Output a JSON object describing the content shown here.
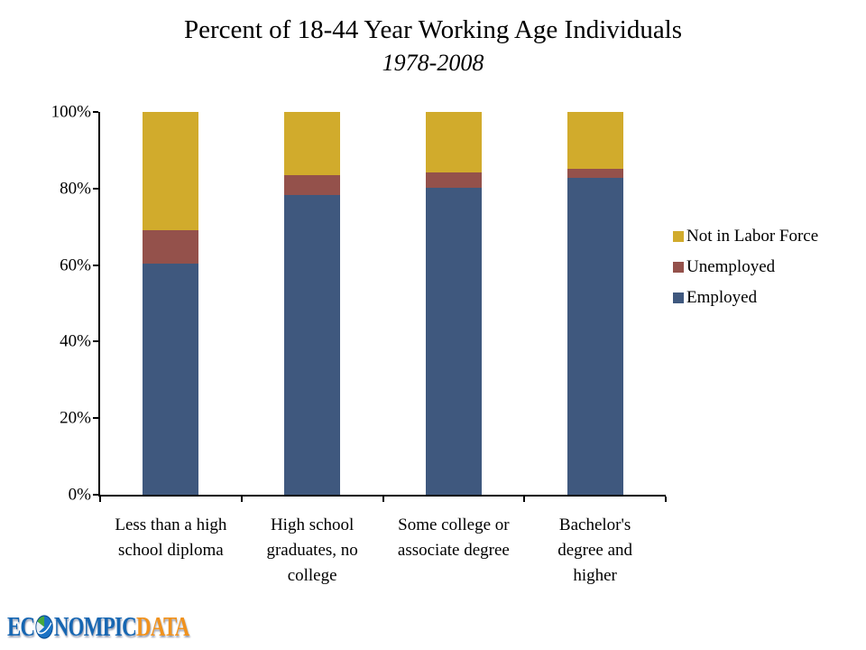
{
  "chart_data": {
    "type": "bar",
    "stacked": true,
    "title": "Percent of 18-44 Year Working Age Individuals",
    "subtitle": "1978-2008",
    "categories": [
      "Less than a high school diploma",
      "High school graduates, no college",
      "Some college or associate degree",
      "Bachelor's degree and higher"
    ],
    "category_lines": [
      [
        "Less than a high",
        "school diploma"
      ],
      [
        "High school",
        "graduates, no",
        "college"
      ],
      [
        "Some college or",
        "associate degree"
      ],
      [
        "Bachelor's",
        "degree and",
        "higher"
      ]
    ],
    "series": [
      {
        "name": "Employed",
        "color": "#3F587E",
        "values": [
          60.4,
          78.2,
          80.2,
          82.7
        ]
      },
      {
        "name": "Unemployed",
        "color": "#94514B",
        "values": [
          8.6,
          5.2,
          4.1,
          2.4
        ]
      },
      {
        "name": "Not in Labor Force",
        "color": "#D1AB2C",
        "values": [
          31.0,
          16.6,
          15.7,
          14.9
        ]
      }
    ],
    "ylim": [
      0,
      100
    ],
    "yticks": [
      {
        "value": 0,
        "label": "0%"
      },
      {
        "value": 20,
        "label": "20%"
      },
      {
        "value": 40,
        "label": "40%"
      },
      {
        "value": 60,
        "label": "60%"
      },
      {
        "value": 80,
        "label": "80%"
      },
      {
        "value": 100,
        "label": "100%"
      }
    ],
    "legend_position": "right",
    "legend_order": [
      "Not in Labor Force",
      "Unemployed",
      "Employed"
    ],
    "grid": false,
    "axis_color": "#000000",
    "background": "#FFFFFF"
  },
  "logo": {
    "text_left": "EC",
    "text_mid": "NOMPIC",
    "text_right": "DATA",
    "blue": "#1666B2",
    "orange": "#F0921E"
  }
}
